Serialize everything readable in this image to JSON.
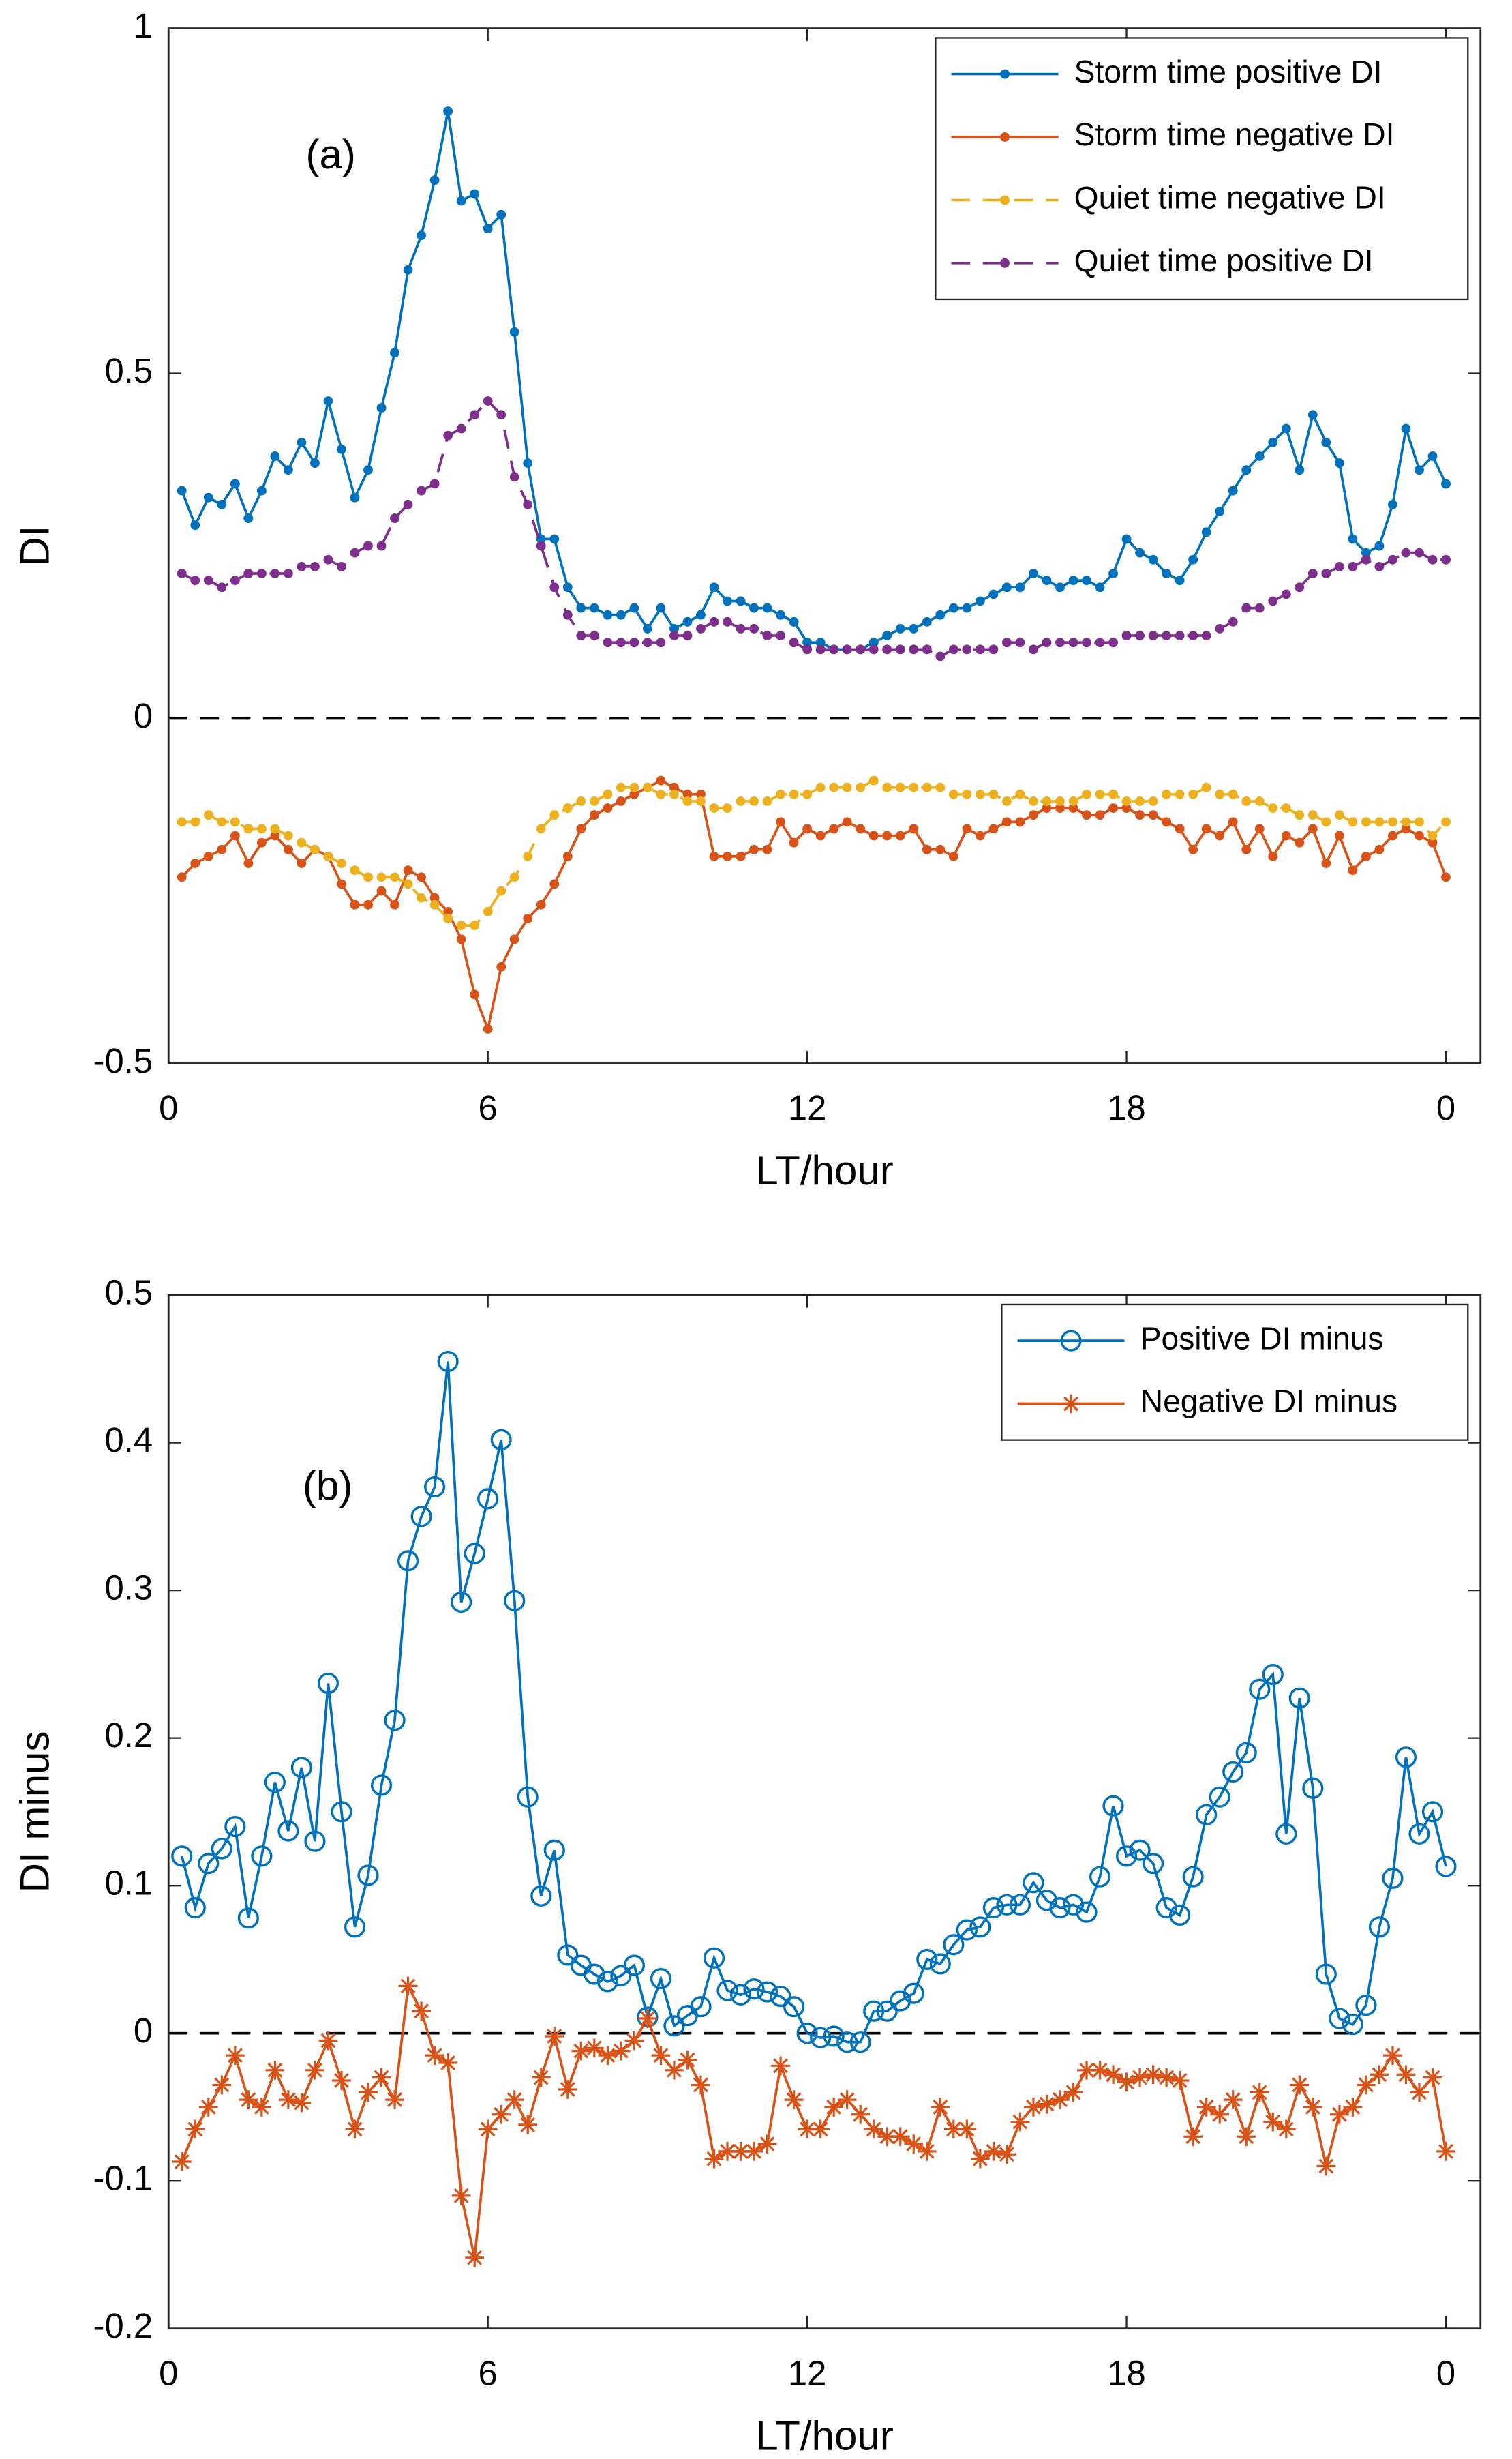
{
  "chart_data": [
    {
      "type": "line",
      "ylabel": "DI",
      "xlabel": "LT/hour",
      "annotation": "(a)",
      "xlim": [
        0,
        24.65
      ],
      "xticks": [
        0,
        6,
        12,
        18,
        {
          "value": 24,
          "label": "0"
        }
      ],
      "ylim": [
        -0.5,
        1
      ],
      "yticks": [
        -0.5,
        0,
        0.5,
        1
      ],
      "reference_line": 0,
      "legend": "northeast",
      "x": [
        0.25,
        0.5,
        0.75,
        1,
        1.25,
        1.5,
        1.75,
        2,
        2.25,
        2.5,
        2.75,
        3,
        3.25,
        3.5,
        3.75,
        4,
        4.25,
        4.5,
        4.75,
        5,
        5.25,
        5.5,
        5.75,
        6,
        6.25,
        6.5,
        6.75,
        7,
        7.25,
        7.5,
        7.75,
        8,
        8.25,
        8.5,
        8.75,
        9,
        9.25,
        9.5,
        9.75,
        10,
        10.25,
        10.5,
        10.75,
        11,
        11.25,
        11.5,
        11.75,
        12,
        12.25,
        12.5,
        12.75,
        13,
        13.25,
        13.5,
        13.75,
        14,
        14.25,
        14.5,
        14.75,
        15,
        15.25,
        15.5,
        15.75,
        16,
        16.25,
        16.5,
        16.75,
        17,
        17.25,
        17.5,
        17.75,
        18,
        18.25,
        18.5,
        18.75,
        19,
        19.25,
        19.5,
        19.75,
        20,
        20.25,
        20.5,
        20.75,
        21,
        21.25,
        21.5,
        21.75,
        22,
        22.25,
        22.5,
        22.75,
        23,
        23.25,
        23.5,
        23.75,
        24
      ],
      "series": [
        {
          "name": "Storm time positive DI",
          "color": "#0072BD",
          "line_style": "solid",
          "marker": "dot",
          "values": [
            0.33,
            0.28,
            0.32,
            0.31,
            0.34,
            0.29,
            0.33,
            0.38,
            0.36,
            0.4,
            0.37,
            0.46,
            0.39,
            0.32,
            0.36,
            0.45,
            0.53,
            0.65,
            0.7,
            0.78,
            0.88,
            0.75,
            0.76,
            0.71,
            0.73,
            0.56,
            0.37,
            0.26,
            0.26,
            0.19,
            0.16,
            0.16,
            0.15,
            0.15,
            0.16,
            0.13,
            0.16,
            0.13,
            0.14,
            0.15,
            0.19,
            0.17,
            0.17,
            0.16,
            0.16,
            0.15,
            0.14,
            0.11,
            0.11,
            0.1,
            0.1,
            0.1,
            0.11,
            0.12,
            0.13,
            0.13,
            0.14,
            0.15,
            0.16,
            0.16,
            0.17,
            0.18,
            0.19,
            0.19,
            0.21,
            0.2,
            0.19,
            0.2,
            0.2,
            0.19,
            0.21,
            0.26,
            0.24,
            0.23,
            0.21,
            0.2,
            0.23,
            0.27,
            0.3,
            0.33,
            0.36,
            0.38,
            0.4,
            0.42,
            0.36,
            0.44,
            0.4,
            0.37,
            0.26,
            0.24,
            0.25,
            0.31,
            0.42,
            0.36,
            0.38,
            0.34
          ]
        },
        {
          "name": "Storm time negative DI",
          "color": "#D95319",
          "line_style": "solid",
          "marker": "dot",
          "values": [
            -0.23,
            -0.21,
            -0.2,
            -0.19,
            -0.17,
            -0.21,
            -0.18,
            -0.17,
            -0.19,
            -0.21,
            -0.19,
            -0.2,
            -0.24,
            -0.27,
            -0.27,
            -0.25,
            -0.27,
            -0.22,
            -0.23,
            -0.26,
            -0.28,
            -0.32,
            -0.4,
            -0.45,
            -0.36,
            -0.32,
            -0.29,
            -0.27,
            -0.24,
            -0.2,
            -0.16,
            -0.14,
            -0.13,
            -0.12,
            -0.11,
            -0.1,
            -0.09,
            -0.1,
            -0.11,
            -0.11,
            -0.2,
            -0.2,
            -0.2,
            -0.19,
            -0.19,
            -0.15,
            -0.18,
            -0.16,
            -0.17,
            -0.16,
            -0.15,
            -0.16,
            -0.17,
            -0.17,
            -0.17,
            -0.16,
            -0.19,
            -0.19,
            -0.2,
            -0.16,
            -0.17,
            -0.16,
            -0.15,
            -0.15,
            -0.14,
            -0.13,
            -0.13,
            -0.13,
            -0.14,
            -0.14,
            -0.13,
            -0.13,
            -0.14,
            -0.14,
            -0.15,
            -0.16,
            -0.19,
            -0.16,
            -0.17,
            -0.15,
            -0.19,
            -0.16,
            -0.2,
            -0.17,
            -0.18,
            -0.16,
            -0.21,
            -0.17,
            -0.22,
            -0.2,
            -0.19,
            -0.17,
            -0.16,
            -0.17,
            -0.18,
            -0.23
          ]
        },
        {
          "name": "Quiet time negative DI",
          "color": "#EDB120",
          "line_style": "dashed",
          "marker": "dot",
          "values": [
            -0.15,
            -0.15,
            -0.14,
            -0.15,
            -0.15,
            -0.16,
            -0.16,
            -0.16,
            -0.17,
            -0.18,
            -0.19,
            -0.2,
            -0.21,
            -0.22,
            -0.23,
            -0.23,
            -0.23,
            -0.24,
            -0.26,
            -0.27,
            -0.29,
            -0.3,
            -0.3,
            -0.28,
            -0.25,
            -0.23,
            -0.2,
            -0.16,
            -0.14,
            -0.13,
            -0.12,
            -0.12,
            -0.11,
            -0.1,
            -0.1,
            -0.1,
            -0.11,
            -0.11,
            -0.12,
            -0.12,
            -0.13,
            -0.13,
            -0.12,
            -0.12,
            -0.12,
            -0.11,
            -0.11,
            -0.11,
            -0.1,
            -0.1,
            -0.1,
            -0.1,
            -0.09,
            -0.1,
            -0.1,
            -0.1,
            -0.1,
            -0.1,
            -0.11,
            -0.11,
            -0.11,
            -0.11,
            -0.12,
            -0.11,
            -0.12,
            -0.12,
            -0.12,
            -0.12,
            -0.11,
            -0.11,
            -0.11,
            -0.12,
            -0.12,
            -0.12,
            -0.11,
            -0.11,
            -0.11,
            -0.1,
            -0.11,
            -0.11,
            -0.12,
            -0.12,
            -0.13,
            -0.13,
            -0.14,
            -0.14,
            -0.15,
            -0.14,
            -0.15,
            -0.15,
            -0.15,
            -0.15,
            -0.15,
            -0.15,
            -0.17,
            -0.15
          ]
        },
        {
          "name": "Quiet time positive DI",
          "color": "#7E2F8E",
          "line_style": "dashed",
          "marker": "dot",
          "values": [
            0.21,
            0.2,
            0.2,
            0.19,
            0.2,
            0.21,
            0.21,
            0.21,
            0.21,
            0.22,
            0.22,
            0.23,
            0.22,
            0.24,
            0.25,
            0.25,
            0.29,
            0.31,
            0.33,
            0.34,
            0.41,
            0.42,
            0.44,
            0.46,
            0.44,
            0.35,
            0.31,
            0.25,
            0.19,
            0.15,
            0.12,
            0.12,
            0.11,
            0.11,
            0.11,
            0.11,
            0.11,
            0.12,
            0.12,
            0.13,
            0.14,
            0.14,
            0.13,
            0.13,
            0.12,
            0.12,
            0.11,
            0.1,
            0.1,
            0.1,
            0.1,
            0.1,
            0.1,
            0.1,
            0.1,
            0.1,
            0.1,
            0.09,
            0.1,
            0.1,
            0.1,
            0.1,
            0.11,
            0.11,
            0.1,
            0.11,
            0.11,
            0.11,
            0.11,
            0.11,
            0.11,
            0.12,
            0.12,
            0.12,
            0.12,
            0.12,
            0.12,
            0.12,
            0.13,
            0.14,
            0.16,
            0.16,
            0.17,
            0.18,
            0.19,
            0.21,
            0.21,
            0.22,
            0.22,
            0.23,
            0.22,
            0.23,
            0.24,
            0.24,
            0.23,
            0.23
          ]
        }
      ]
    },
    {
      "type": "line",
      "ylabel": "DI minus",
      "xlabel": "LT/hour",
      "annotation": "(b)",
      "xlim": [
        0,
        24.65
      ],
      "xticks": [
        0,
        6,
        12,
        18,
        {
          "value": 24,
          "label": "0"
        }
      ],
      "ylim": [
        -0.2,
        0.5
      ],
      "yticks": [
        -0.2,
        -0.1,
        0,
        0.1,
        0.2,
        0.3,
        0.4,
        0.5
      ],
      "reference_line": 0,
      "legend": "northeast",
      "x": [
        0.25,
        0.5,
        0.75,
        1,
        1.25,
        1.5,
        1.75,
        2,
        2.25,
        2.5,
        2.75,
        3,
        3.25,
        3.5,
        3.75,
        4,
        4.25,
        4.5,
        4.75,
        5,
        5.25,
        5.5,
        5.75,
        6,
        6.25,
        6.5,
        6.75,
        7,
        7.25,
        7.5,
        7.75,
        8,
        8.25,
        8.5,
        8.75,
        9,
        9.25,
        9.5,
        9.75,
        10,
        10.25,
        10.5,
        10.75,
        11,
        11.25,
        11.5,
        11.75,
        12,
        12.25,
        12.5,
        12.75,
        13,
        13.25,
        13.5,
        13.75,
        14,
        14.25,
        14.5,
        14.75,
        15,
        15.25,
        15.5,
        15.75,
        16,
        16.25,
        16.5,
        16.75,
        17,
        17.25,
        17.5,
        17.75,
        18,
        18.25,
        18.5,
        18.75,
        19,
        19.25,
        19.5,
        19.75,
        20,
        20.25,
        20.5,
        20.75,
        21,
        21.25,
        21.5,
        21.75,
        22,
        22.25,
        22.5,
        22.75,
        23,
        23.25,
        23.5,
        23.75,
        24
      ],
      "series": [
        {
          "name": "Positive DI minus",
          "color": "#0072BD",
          "line_style": "solid",
          "marker": "circle",
          "values": [
            0.12,
            0.085,
            0.115,
            0.125,
            0.14,
            0.078,
            0.12,
            0.17,
            0.137,
            0.18,
            0.13,
            0.237,
            0.15,
            0.072,
            0.107,
            0.168,
            0.212,
            0.32,
            0.35,
            0.37,
            0.455,
            0.292,
            0.325,
            0.362,
            0.402,
            0.293,
            0.16,
            0.093,
            0.124,
            0.053,
            0.046,
            0.04,
            0.035,
            0.039,
            0.046,
            0.011,
            0.037,
            0.005,
            0.012,
            0.018,
            0.051,
            0.029,
            0.026,
            0.03,
            0.028,
            0.025,
            0.018,
            0,
            -0.003,
            -0.002,
            -0.006,
            -0.006,
            0.015,
            0.015,
            0.022,
            0.027,
            0.05,
            0.047,
            0.06,
            0.07,
            0.072,
            0.085,
            0.087,
            0.087,
            0.102,
            0.09,
            0.085,
            0.087,
            0.082,
            0.106,
            0.154,
            0.12,
            0.124,
            0.115,
            0.085,
            0.08,
            0.106,
            0.148,
            0.16,
            0.177,
            0.19,
            0.233,
            0.243,
            0.135,
            0.227,
            0.166,
            0.04,
            0.01,
            0.006,
            0.019,
            0.072,
            0.105,
            0.187,
            0.135,
            0.15,
            0.113
          ]
        },
        {
          "name": "Negative DI minus",
          "color": "#D95319",
          "line_style": "solid",
          "marker": "star",
          "values": [
            -0.087,
            -0.065,
            -0.05,
            -0.035,
            -0.015,
            -0.045,
            -0.05,
            -0.025,
            -0.045,
            -0.047,
            -0.025,
            -0.005,
            -0.032,
            -0.065,
            -0.04,
            -0.03,
            -0.045,
            0.032,
            0.015,
            -0.015,
            -0.02,
            -0.11,
            -0.152,
            -0.065,
            -0.055,
            -0.045,
            -0.062,
            -0.03,
            -0.002,
            -0.038,
            -0.012,
            -0.01,
            -0.015,
            -0.012,
            -0.005,
            0.01,
            -0.015,
            -0.025,
            -0.018,
            -0.035,
            -0.085,
            -0.08,
            -0.08,
            -0.08,
            -0.075,
            -0.022,
            -0.045,
            -0.065,
            -0.065,
            -0.05,
            -0.045,
            -0.055,
            -0.065,
            -0.07,
            -0.07,
            -0.075,
            -0.08,
            -0.05,
            -0.065,
            -0.065,
            -0.085,
            -0.08,
            -0.082,
            -0.06,
            -0.05,
            -0.048,
            -0.045,
            -0.04,
            -0.025,
            -0.025,
            -0.028,
            -0.033,
            -0.03,
            -0.028,
            -0.03,
            -0.032,
            -0.07,
            -0.05,
            -0.055,
            -0.045,
            -0.07,
            -0.04,
            -0.06,
            -0.065,
            -0.035,
            -0.05,
            -0.09,
            -0.055,
            -0.05,
            -0.035,
            -0.028,
            -0.015,
            -0.028,
            -0.04,
            -0.03,
            -0.08
          ]
        }
      ]
    }
  ]
}
